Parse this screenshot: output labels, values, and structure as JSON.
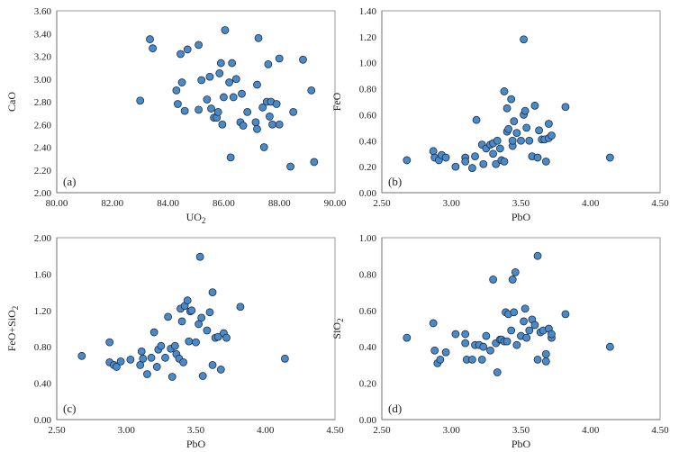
{
  "chart_data": [
    {
      "type": "scatter",
      "panel_label": "(a)",
      "xlabel": "UO",
      "xlabel_sub": "2",
      "ylabel": "CaO",
      "xlim": [
        80,
        90
      ],
      "ylim": [
        2.0,
        3.6
      ],
      "xticks": [
        80,
        82,
        84,
        86,
        88,
        90
      ],
      "yticks": [
        2.0,
        2.2,
        2.4,
        2.6,
        2.8,
        3.0,
        3.2,
        3.4,
        3.6
      ],
      "xdecimals": 2,
      "ydecimals": 2,
      "points": [
        [
          83.0,
          2.81
        ],
        [
          83.35,
          3.35
        ],
        [
          83.45,
          3.27
        ],
        [
          84.3,
          2.9
        ],
        [
          84.35,
          2.78
        ],
        [
          84.45,
          3.22
        ],
        [
          84.5,
          2.97
        ],
        [
          84.6,
          2.72
        ],
        [
          84.7,
          3.26
        ],
        [
          85.1,
          3.3
        ],
        [
          85.1,
          2.73
        ],
        [
          85.2,
          2.99
        ],
        [
          85.4,
          2.82
        ],
        [
          85.5,
          3.02
        ],
        [
          85.55,
          2.74
        ],
        [
          85.65,
          2.66
        ],
        [
          85.75,
          2.66
        ],
        [
          85.8,
          2.71
        ],
        [
          85.85,
          3.05
        ],
        [
          85.9,
          3.14
        ],
        [
          85.95,
          2.6
        ],
        [
          86.0,
          2.84
        ],
        [
          86.05,
          3.43
        ],
        [
          86.2,
          2.97
        ],
        [
          86.25,
          2.31
        ],
        [
          86.3,
          3.14
        ],
        [
          86.35,
          2.84
        ],
        [
          86.45,
          3.0
        ],
        [
          86.6,
          2.62
        ],
        [
          86.65,
          2.87
        ],
        [
          86.7,
          2.59
        ],
        [
          86.85,
          2.71
        ],
        [
          87.15,
          2.62
        ],
        [
          87.2,
          2.56
        ],
        [
          87.25,
          3.36
        ],
        [
          87.2,
          2.95
        ],
        [
          87.4,
          2.75
        ],
        [
          87.45,
          2.4
        ],
        [
          87.55,
          2.8
        ],
        [
          87.6,
          3.13
        ],
        [
          87.65,
          2.67
        ],
        [
          87.7,
          2.8
        ],
        [
          87.75,
          2.6
        ],
        [
          87.9,
          2.78
        ],
        [
          88.0,
          3.18
        ],
        [
          88.0,
          2.6
        ],
        [
          88.4,
          2.23
        ],
        [
          88.5,
          2.71
        ],
        [
          88.85,
          3.17
        ],
        [
          89.15,
          2.9
        ],
        [
          89.25,
          2.27
        ]
      ]
    },
    {
      "type": "scatter",
      "panel_label": "(b)",
      "xlabel": "PbO",
      "xlabel_sub": "",
      "ylabel": "FeO",
      "xlim": [
        2.5,
        4.5
      ],
      "ylim": [
        0,
        1.4
      ],
      "xticks": [
        2.5,
        3.0,
        3.5,
        4.0,
        4.5
      ],
      "yticks": [
        0,
        0.2,
        0.4,
        0.6,
        0.8,
        1.0,
        1.2,
        1.4
      ],
      "xdecimals": 2,
      "ydecimals": 2,
      "points": [
        [
          2.68,
          0.25
        ],
        [
          2.87,
          0.32
        ],
        [
          2.88,
          0.27
        ],
        [
          2.91,
          0.25
        ],
        [
          2.93,
          0.29
        ],
        [
          2.96,
          0.27
        ],
        [
          3.03,
          0.2
        ],
        [
          3.1,
          0.27
        ],
        [
          3.1,
          0.24
        ],
        [
          3.15,
          0.19
        ],
        [
          3.17,
          0.28
        ],
        [
          3.18,
          0.56
        ],
        [
          3.22,
          0.37
        ],
        [
          3.23,
          0.22
        ],
        [
          3.25,
          0.34
        ],
        [
          3.28,
          0.37
        ],
        [
          3.3,
          0.3
        ],
        [
          3.3,
          0.38
        ],
        [
          3.32,
          0.22
        ],
        [
          3.33,
          0.4
        ],
        [
          3.35,
          0.34
        ],
        [
          3.36,
          0.25
        ],
        [
          3.38,
          0.24
        ],
        [
          3.38,
          0.78
        ],
        [
          3.4,
          0.47
        ],
        [
          3.4,
          0.65
        ],
        [
          3.41,
          0.49
        ],
        [
          3.43,
          0.72
        ],
        [
          3.44,
          0.36
        ],
        [
          3.44,
          0.4
        ],
        [
          3.45,
          0.55
        ],
        [
          3.47,
          0.46
        ],
        [
          3.5,
          0.4
        ],
        [
          3.52,
          0.6
        ],
        [
          3.52,
          1.18
        ],
        [
          3.53,
          0.63
        ],
        [
          3.54,
          0.5
        ],
        [
          3.56,
          0.4
        ],
        [
          3.58,
          0.28
        ],
        [
          3.6,
          0.67
        ],
        [
          3.62,
          0.27
        ],
        [
          3.63,
          0.48
        ],
        [
          3.65,
          0.41
        ],
        [
          3.67,
          0.41
        ],
        [
          3.68,
          0.24
        ],
        [
          3.7,
          0.42
        ],
        [
          3.7,
          0.53
        ],
        [
          3.72,
          0.44
        ],
        [
          3.82,
          0.66
        ],
        [
          4.14,
          0.27
        ]
      ]
    },
    {
      "type": "scatter",
      "panel_label": "(c)",
      "xlabel": "PbO",
      "xlabel_sub": "",
      "ylabel": "FeO+SiO",
      "ylabel_sub": "2",
      "xlim": [
        2.5,
        4.5
      ],
      "ylim": [
        0,
        2.0
      ],
      "xticks": [
        2.5,
        3.0,
        3.5,
        4.0,
        4.5
      ],
      "yticks": [
        0,
        0.4,
        0.8,
        1.2,
        1.6,
        2.0
      ],
      "xdecimals": 2,
      "ydecimals": 2,
      "points": [
        [
          2.68,
          0.7
        ],
        [
          2.88,
          0.85
        ],
        [
          2.88,
          0.63
        ],
        [
          2.91,
          0.6
        ],
        [
          2.93,
          0.58
        ],
        [
          2.96,
          0.64
        ],
        [
          3.03,
          0.66
        ],
        [
          3.1,
          0.6
        ],
        [
          3.11,
          0.75
        ],
        [
          3.12,
          0.67
        ],
        [
          3.15,
          0.5
        ],
        [
          3.18,
          0.68
        ],
        [
          3.2,
          0.96
        ],
        [
          3.22,
          0.58
        ],
        [
          3.23,
          0.77
        ],
        [
          3.25,
          0.81
        ],
        [
          3.28,
          0.68
        ],
        [
          3.3,
          1.13
        ],
        [
          3.32,
          0.78
        ],
        [
          3.33,
          0.47
        ],
        [
          3.35,
          0.81
        ],
        [
          3.36,
          0.72
        ],
        [
          3.38,
          0.67
        ],
        [
          3.39,
          1.22
        ],
        [
          3.4,
          1.08
        ],
        [
          3.41,
          0.63
        ],
        [
          3.42,
          1.25
        ],
        [
          3.44,
          1.31
        ],
        [
          3.45,
          0.86
        ],
        [
          3.46,
          1.19
        ],
        [
          3.47,
          1.2
        ],
        [
          3.5,
          0.85
        ],
        [
          3.52,
          1.05
        ],
        [
          3.53,
          1.79
        ],
        [
          3.54,
          1.12
        ],
        [
          3.55,
          0.48
        ],
        [
          3.58,
          0.98
        ],
        [
          3.6,
          1.18
        ],
        [
          3.62,
          1.4
        ],
        [
          3.62,
          0.6
        ],
        [
          3.64,
          0.9
        ],
        [
          3.66,
          0.91
        ],
        [
          3.68,
          0.55
        ],
        [
          3.7,
          0.95
        ],
        [
          3.72,
          0.9
        ],
        [
          3.82,
          1.24
        ],
        [
          4.14,
          0.67
        ]
      ]
    },
    {
      "type": "scatter",
      "panel_label": "(d)",
      "xlabel": "PbO",
      "xlabel_sub": "",
      "ylabel": "SiO",
      "ylabel_sub": "2",
      "xlim": [
        2.5,
        4.5
      ],
      "ylim": [
        0,
        1.0
      ],
      "xticks": [
        2.5,
        3.0,
        3.5,
        4.0,
        4.5
      ],
      "yticks": [
        0,
        0.2,
        0.4,
        0.6,
        0.8,
        1.0
      ],
      "xdecimals": 2,
      "ydecimals": 2,
      "points": [
        [
          2.68,
          0.45
        ],
        [
          2.87,
          0.53
        ],
        [
          2.88,
          0.38
        ],
        [
          2.9,
          0.31
        ],
        [
          2.92,
          0.33
        ],
        [
          2.96,
          0.37
        ],
        [
          3.03,
          0.47
        ],
        [
          3.1,
          0.47
        ],
        [
          3.1,
          0.42
        ],
        [
          3.11,
          0.33
        ],
        [
          3.15,
          0.33
        ],
        [
          3.17,
          0.41
        ],
        [
          3.2,
          0.41
        ],
        [
          3.22,
          0.33
        ],
        [
          3.23,
          0.4
        ],
        [
          3.25,
          0.46
        ],
        [
          3.28,
          0.38
        ],
        [
          3.3,
          0.77
        ],
        [
          3.32,
          0.42
        ],
        [
          3.33,
          0.26
        ],
        [
          3.35,
          0.44
        ],
        [
          3.36,
          0.44
        ],
        [
          3.38,
          0.43
        ],
        [
          3.39,
          0.59
        ],
        [
          3.4,
          0.43
        ],
        [
          3.41,
          0.58
        ],
        [
          3.43,
          0.49
        ],
        [
          3.44,
          0.77
        ],
        [
          3.45,
          0.59
        ],
        [
          3.46,
          0.81
        ],
        [
          3.47,
          0.41
        ],
        [
          3.5,
          0.46
        ],
        [
          3.52,
          0.54
        ],
        [
          3.53,
          0.61
        ],
        [
          3.54,
          0.45
        ],
        [
          3.56,
          0.49
        ],
        [
          3.58,
          0.55
        ],
        [
          3.6,
          0.52
        ],
        [
          3.62,
          0.9
        ],
        [
          3.62,
          0.33
        ],
        [
          3.64,
          0.48
        ],
        [
          3.66,
          0.49
        ],
        [
          3.68,
          0.32
        ],
        [
          3.68,
          0.36
        ],
        [
          3.7,
          0.5
        ],
        [
          3.72,
          0.45
        ],
        [
          3.72,
          0.47
        ],
        [
          3.82,
          0.58
        ],
        [
          4.14,
          0.4
        ]
      ]
    }
  ]
}
